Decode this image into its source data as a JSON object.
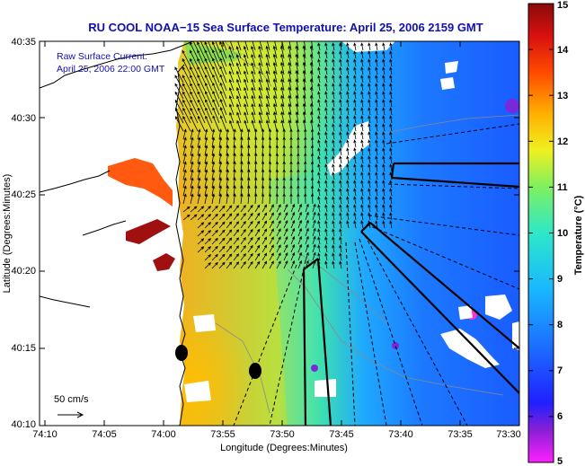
{
  "title": "RU COOL  NOAA−15  Sea Surface Temperature:  April 25, 2006 2159 GMT",
  "annotation": {
    "line1": "Raw Surface Current:",
    "line2": "April 25, 2006 22:00 GMT"
  },
  "scale_label": "50 cm/s",
  "xlabel": "Longitude (Degrees:Minutes)",
  "ylabel": "Latitude (Degrees:Minutes)",
  "xticks": [
    "74:10",
    "74:05",
    "74:00",
    "73:55",
    "73:50",
    "73:45",
    "73:40",
    "73:35",
    "73:30"
  ],
  "yticks": [
    "40:35",
    "40:30",
    "40:25",
    "40:20",
    "40:15",
    "40:10"
  ],
  "colorbar": {
    "label": "Temperature (°C)",
    "min": 5,
    "max": 15,
    "ticks": [
      "15",
      "14",
      "13",
      "12",
      "11",
      "10",
      "9",
      "8",
      "7",
      "6",
      "5"
    ],
    "colors": [
      "#ff20ff",
      "#6a1fd6",
      "#1426ff",
      "#1c6cff",
      "#19b9ff",
      "#2ee8c8",
      "#7ef060",
      "#f0f020",
      "#ffb000",
      "#ff4a00",
      "#d81010",
      "#8a0a0a"
    ]
  },
  "colors": {
    "title": "#1010b0",
    "land": "#ffffff",
    "cloud": "#ffffff",
    "arrow": "#000000"
  }
}
